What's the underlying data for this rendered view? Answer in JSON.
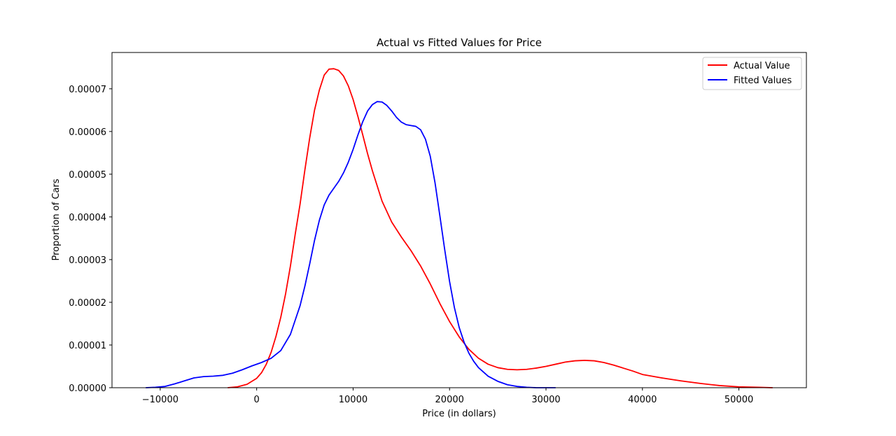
{
  "chart_data": {
    "type": "line",
    "title": "Actual vs Fitted Values for Price",
    "xlabel": "Price (in dollars)",
    "ylabel": "Proportion of Cars",
    "xlim": [
      -15000,
      57000
    ],
    "ylim": [
      0,
      7.85e-05
    ],
    "xticks": [
      -10000,
      0,
      10000,
      20000,
      30000,
      40000,
      50000
    ],
    "xtick_labels": [
      "−10000",
      "0",
      "10000",
      "20000",
      "30000",
      "40000",
      "50000"
    ],
    "yticks": [
      0,
      1e-05,
      2e-05,
      3e-05,
      4e-05,
      5e-05,
      6e-05,
      7e-05
    ],
    "ytick_labels": [
      "0.00000",
      "0.00001",
      "0.00002",
      "0.00003",
      "0.00004",
      "0.00005",
      "0.00006",
      "0.00007"
    ],
    "grid": false,
    "legend_position": "top-right",
    "series": [
      {
        "name": "Actual Value",
        "color": "#ff0000",
        "x": [
          -3000,
          -2000,
          -1000,
          0,
          500,
          1000,
          1500,
          2000,
          2500,
          3000,
          3500,
          4000,
          4500,
          5000,
          5500,
          6000,
          6500,
          7000,
          7500,
          8000,
          8500,
          9000,
          9500,
          10000,
          10500,
          11000,
          11500,
          12000,
          13000,
          14000,
          15000,
          16000,
          17000,
          18000,
          19000,
          20000,
          21000,
          22000,
          23000,
          24000,
          25000,
          26000,
          27000,
          28000,
          29000,
          30000,
          31000,
          32000,
          33000,
          34000,
          35000,
          36000,
          37000,
          38000,
          39000,
          40000,
          42000,
          44000,
          46000,
          48000,
          50000,
          52000,
          53500
        ],
        "y": [
          0.0,
          2e-07,
          8e-07,
          2.2e-06,
          3.5e-06,
          5.5e-06,
          8.3e-06,
          1.2e-05,
          1.65e-05,
          2.2e-05,
          2.85e-05,
          3.6e-05,
          4.3e-05,
          5.1e-05,
          5.85e-05,
          6.5e-05,
          6.97e-05,
          7.32e-05,
          7.46e-05,
          7.47e-05,
          7.43e-05,
          7.3e-05,
          7.07e-05,
          6.75e-05,
          6.35e-05,
          5.92e-05,
          5.48e-05,
          5.08e-05,
          4.37e-05,
          3.88e-05,
          3.53e-05,
          3.21e-05,
          2.85e-05,
          2.43e-05,
          1.97e-05,
          1.55e-05,
          1.19e-05,
          9e-06,
          6.9e-06,
          5.5e-06,
          4.7e-06,
          4.3e-06,
          4.2e-06,
          4.3e-06,
          4.6e-06,
          5e-06,
          5.5e-06,
          6e-06,
          6.3e-06,
          6.4e-06,
          6.3e-06,
          5.9e-06,
          5.3e-06,
          4.6e-06,
          3.9e-06,
          3.1e-06,
          2.3e-06,
          1.6e-06,
          1e-06,
          5e-07,
          2e-07,
          1e-07,
          0.0
        ]
      },
      {
        "name": "Fitted Values",
        "color": "#0000ff",
        "x": [
          -11500,
          -10500,
          -9500,
          -8500,
          -7500,
          -6500,
          -5500,
          -4500,
          -3500,
          -2500,
          -1500,
          -500,
          500,
          1500,
          2500,
          3500,
          4500,
          5000,
          5500,
          6000,
          6500,
          7000,
          7500,
          8000,
          8500,
          9000,
          9500,
          10000,
          10500,
          11000,
          11500,
          12000,
          12500,
          13000,
          13500,
          14000,
          14500,
          15000,
          15500,
          16000,
          16500,
          17000,
          17500,
          18000,
          18500,
          19000,
          19500,
          20000,
          20500,
          21000,
          21500,
          22000,
          22500,
          23000,
          24000,
          25000,
          26000,
          27000,
          28000,
          29000,
          30000,
          31000
        ],
        "y": [
          0.0,
          1e-07,
          3e-07,
          9e-07,
          1.6e-06,
          2.3e-06,
          2.6e-06,
          2.7e-06,
          2.9e-06,
          3.4e-06,
          4.2e-06,
          5.1e-06,
          5.9e-06,
          6.9e-06,
          8.7e-06,
          1.25e-05,
          1.92e-05,
          2.38e-05,
          2.9e-05,
          3.45e-05,
          3.92e-05,
          4.28e-05,
          4.51e-05,
          4.67e-05,
          4.83e-05,
          5.03e-05,
          5.28e-05,
          5.58e-05,
          5.92e-05,
          6.23e-05,
          6.48e-05,
          6.63e-05,
          6.7e-05,
          6.69e-05,
          6.61e-05,
          6.48e-05,
          6.33e-05,
          6.22e-05,
          6.16e-05,
          6.14e-05,
          6.12e-05,
          6.04e-05,
          5.82e-05,
          5.42e-05,
          4.79e-05,
          4.02e-05,
          3.23e-05,
          2.49e-05,
          1.88e-05,
          1.41e-05,
          1.07e-05,
          8.1e-06,
          6.2e-06,
          4.7e-06,
          2.7e-06,
          1.5e-06,
          7e-07,
          3e-07,
          1e-07,
          0.0,
          0.0,
          0.0
        ]
      }
    ]
  }
}
